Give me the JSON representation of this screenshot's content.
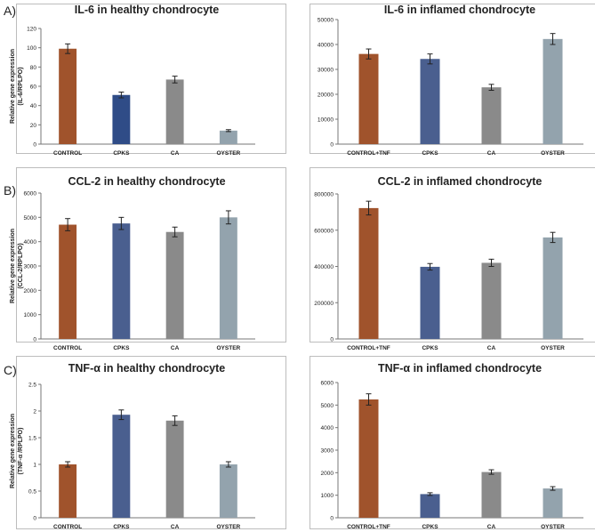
{
  "panel_labels": [
    "A)",
    "B)",
    "C)"
  ],
  "colors": {
    "CONTROL": "#a0532c",
    "CPKS": "#4a5f8f",
    "CA": "#8a8a8a",
    "OYSTER": "#93a3ad",
    "axis": "#777777",
    "text": "#222222",
    "border": "#bdbdbd"
  },
  "chart_data": [
    {
      "id": "il6-healthy",
      "type": "bar",
      "title": "IL-6 in healthy chondrocyte",
      "ylabel": "Relative gene expression",
      "ylabel2": "(IL-6/RPLPO)",
      "categories": [
        "CONTROL",
        "CPKS",
        "CA",
        "OYSTER"
      ],
      "values": [
        99,
        51,
        67,
        14
      ],
      "errors": [
        5,
        3,
        3.5,
        1
      ],
      "ylim": [
        0,
        120
      ],
      "ticks": [
        0,
        20,
        40,
        60,
        80,
        100,
        120
      ],
      "bar_colors": [
        "#a0532c",
        "#2f4c87",
        "#8a8a8a",
        "#93a3ad"
      ]
    },
    {
      "id": "il6-inflamed",
      "type": "bar",
      "title": "IL-6 in inflamed chondrocyte",
      "ylabel": "",
      "ylabel2": "",
      "categories": [
        "CONTROL+TNF",
        "CPKS",
        "CA",
        "OYSTER"
      ],
      "values": [
        36200,
        34200,
        22800,
        42200
      ],
      "errors": [
        2000,
        2000,
        1200,
        2200
      ],
      "ylim": [
        0,
        50000
      ],
      "ticks": [
        0,
        10000,
        20000,
        30000,
        40000,
        50000
      ],
      "bar_colors": [
        "#a0532c",
        "#4a5f8f",
        "#8a8a8a",
        "#93a3ad"
      ]
    },
    {
      "id": "ccl2-healthy",
      "type": "bar",
      "title": "CCL-2 in healthy chondrocyte",
      "ylabel": "Relative gene expression",
      "ylabel2": "(CCL-2/RPLPO)",
      "categories": [
        "CONTROL",
        "CPKS",
        "CA",
        "OYSTER"
      ],
      "values": [
        4700,
        4750,
        4400,
        5000
      ],
      "errors": [
        250,
        250,
        200,
        270
      ],
      "ylim": [
        0,
        6000
      ],
      "ticks": [
        0,
        1000,
        2000,
        3000,
        4000,
        5000,
        6000
      ],
      "bar_colors": [
        "#a0532c",
        "#4a5f8f",
        "#8a8a8a",
        "#93a3ad"
      ]
    },
    {
      "id": "ccl2-inflamed",
      "type": "bar",
      "title": "CCL-2 in inflamed chondrocyte",
      "ylabel": "",
      "ylabel2": "",
      "categories": [
        "CONTROL+TNF",
        "CPKS",
        "CA",
        "OYSTER"
      ],
      "values": [
        722000,
        398000,
        420000,
        560000
      ],
      "errors": [
        38000,
        18000,
        20000,
        28000
      ],
      "ylim": [
        0,
        800000
      ],
      "ticks": [
        0,
        200000,
        400000,
        600000,
        800000
      ],
      "bar_colors": [
        "#a0532c",
        "#4a5f8f",
        "#8a8a8a",
        "#93a3ad"
      ]
    },
    {
      "id": "tnf-healthy",
      "type": "bar",
      "title": "TNF-α in healthy chondrocyte",
      "ylabel": "Relative gene expression",
      "ylabel2": "(TNF-α /RPLPO)",
      "categories": [
        "CONTROL",
        "CPKS",
        "CA",
        "OYSTER"
      ],
      "values": [
        1.0,
        1.93,
        1.82,
        1.0
      ],
      "errors": [
        0.05,
        0.09,
        0.09,
        0.05
      ],
      "ylim": [
        0,
        2.5
      ],
      "ticks": [
        0,
        0.5,
        1,
        1.5,
        2,
        2.5
      ],
      "bar_colors": [
        "#a0532c",
        "#4a5f8f",
        "#8a8a8a",
        "#93a3ad"
      ]
    },
    {
      "id": "tnf-inflamed",
      "type": "bar",
      "title": "TNF-α in inflamed chondrocyte",
      "ylabel": "",
      "ylabel2": "",
      "categories": [
        "CONTROL+TNF",
        "CPKS",
        "CA",
        "OYSTER"
      ],
      "values": [
        5250,
        1050,
        2030,
        1300
      ],
      "errors": [
        250,
        60,
        100,
        80
      ],
      "ylim": [
        0,
        6000
      ],
      "ticks": [
        0,
        1000,
        2000,
        3000,
        4000,
        5000,
        6000
      ],
      "bar_colors": [
        "#a0532c",
        "#4a5f8f",
        "#8a8a8a",
        "#93a3ad"
      ]
    }
  ]
}
